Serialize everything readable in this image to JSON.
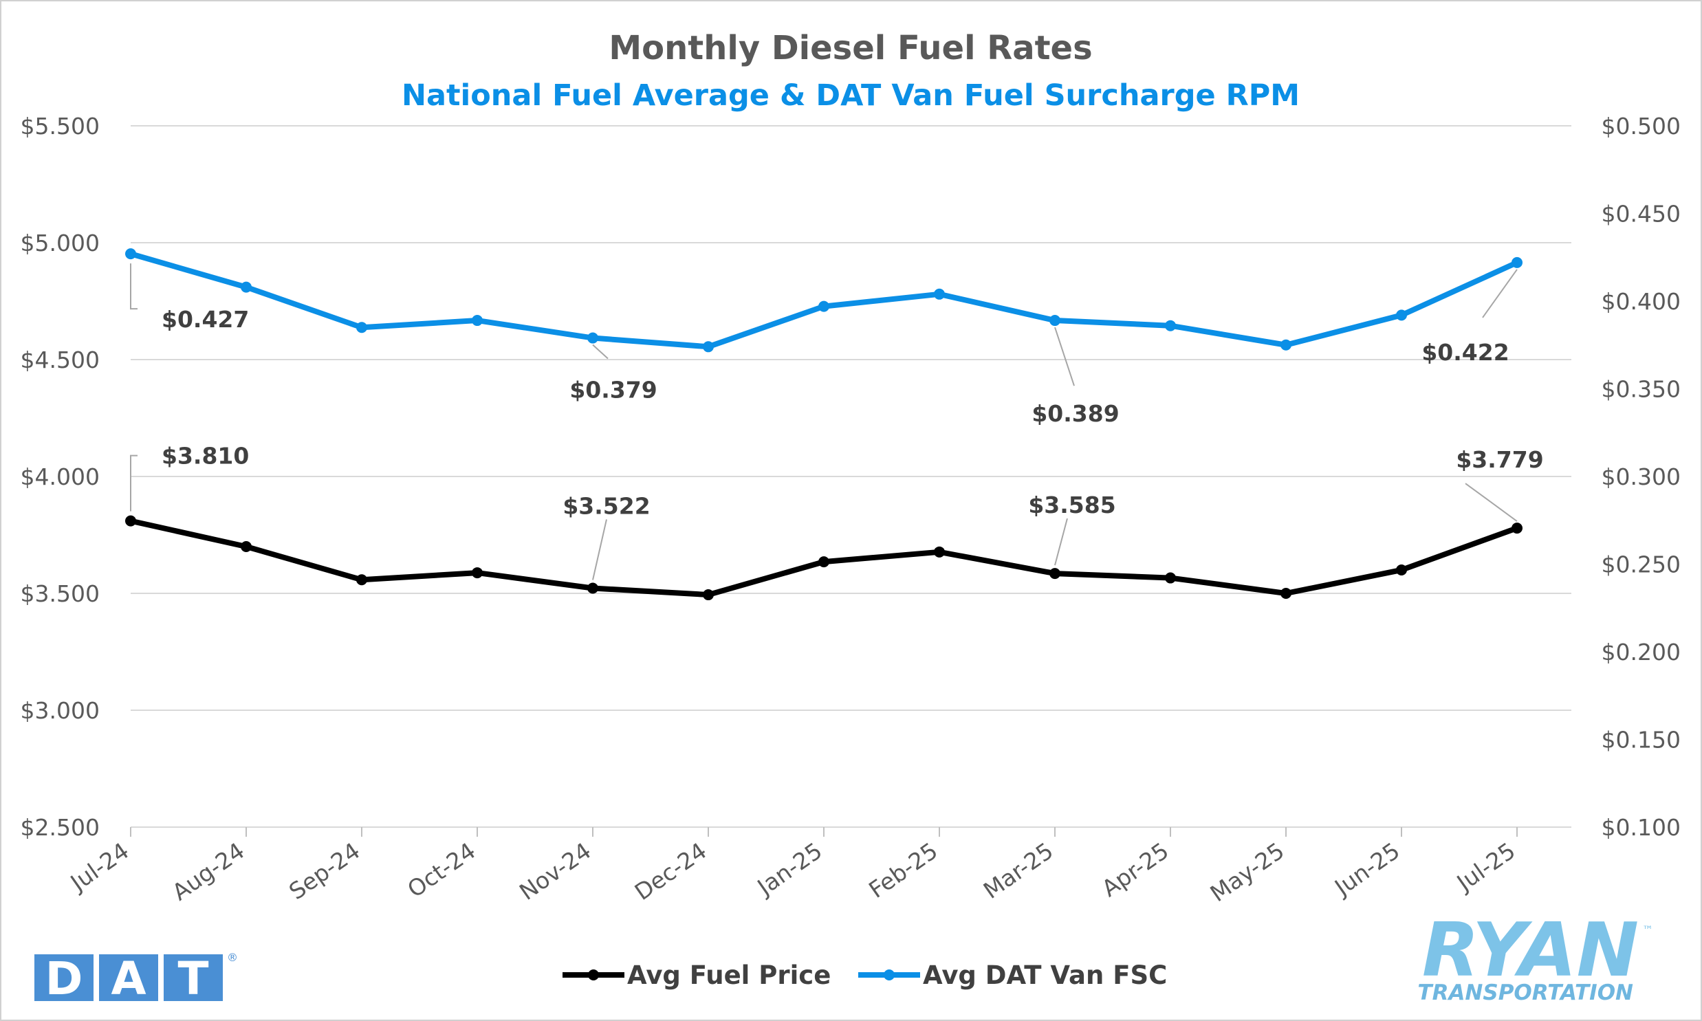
{
  "chart_data": {
    "type": "line",
    "title": "Monthly Diesel Fuel Rates",
    "subtitle": "National Fuel Average & DAT Van Fuel Surcharge RPM",
    "categories": [
      "Jul-24",
      "Aug-24",
      "Sep-24",
      "Oct-24",
      "Nov-24",
      "Dec-24",
      "Jan-25",
      "Feb-25",
      "Mar-25",
      "Apr-25",
      "May-25",
      "Jun-25",
      "Jul-25"
    ],
    "y_left": {
      "min": 2.5,
      "max": 5.5,
      "step": 0.5,
      "ticks": [
        "$2.500",
        "$3.000",
        "$3.500",
        "$4.000",
        "$4.500",
        "$5.000",
        "$5.500"
      ]
    },
    "y_right": {
      "min": 0.1,
      "max": 0.5,
      "step": 0.05,
      "ticks": [
        "$0.100",
        "$0.150",
        "$0.200",
        "$0.250",
        "$0.300",
        "$0.350",
        "$0.400",
        "$0.450",
        "$0.500"
      ]
    },
    "grid": true,
    "legend_position": "bottom",
    "series": [
      {
        "name": "Avg Fuel Price",
        "axis": "left",
        "color": "#000000",
        "values": [
          3.81,
          3.7,
          3.558,
          3.588,
          3.522,
          3.494,
          3.635,
          3.677,
          3.585,
          3.566,
          3.5,
          3.6,
          3.779
        ],
        "labels": [
          {
            "index": 0,
            "text": "$3.810"
          },
          {
            "index": 4,
            "text": "$3.522"
          },
          {
            "index": 8,
            "text": "$3.585"
          },
          {
            "index": 12,
            "text": "$3.779"
          }
        ]
      },
      {
        "name": "Avg DAT Van FSC",
        "axis": "right",
        "color": "#0b8fe6",
        "values": [
          0.427,
          0.408,
          0.385,
          0.389,
          0.379,
          0.374,
          0.397,
          0.404,
          0.389,
          0.386,
          0.375,
          0.392,
          0.422
        ],
        "labels": [
          {
            "index": 0,
            "text": "$0.427"
          },
          {
            "index": 4,
            "text": "$0.379"
          },
          {
            "index": 8,
            "text": "$0.389"
          },
          {
            "index": 12,
            "text": "$0.422"
          }
        ]
      }
    ]
  },
  "logos": {
    "dat_letters": [
      "D",
      "A",
      "T"
    ],
    "dat_mark": "®",
    "dat_color": "#4a8fd4",
    "ryan_name": "RYAN",
    "ryan_mark": "™",
    "ryan_tagline": "TRANSPORTATION"
  }
}
